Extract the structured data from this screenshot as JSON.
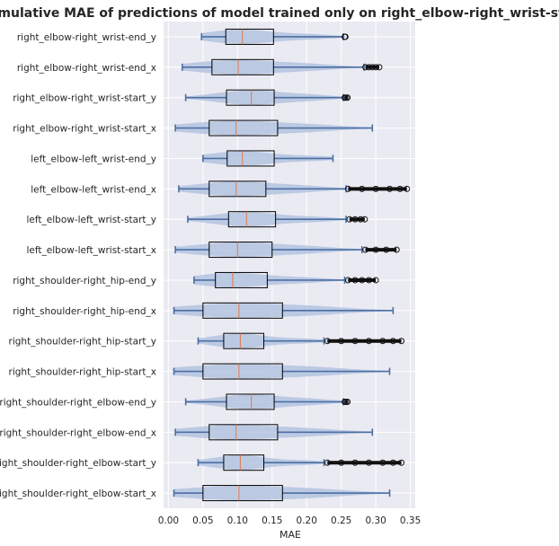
{
  "chart_data": {
    "type": "box-violin",
    "title": "Cumulative MAE of predictions of model trained only on right_elbow-right_wrist-start_x",
    "xlabel": "MAE",
    "ylabel": "",
    "xlim": [
      -0.007,
      0.357
    ],
    "xticks": [
      0.0,
      0.05,
      0.1,
      0.15,
      0.2,
      0.25,
      0.3,
      0.35
    ],
    "xtick_labels": [
      "0.00",
      "0.05",
      "0.10",
      "0.15",
      "0.20",
      "0.25",
      "0.30",
      "0.35"
    ],
    "grid": true,
    "colors": {
      "background": "#eaeaf2",
      "grid": "#ffffff",
      "violin": "#b3c3e0",
      "whisker": "#4c6fa3",
      "median": "#e07a4a",
      "box": "#000000",
      "outlier": "#111111"
    },
    "categories": [
      "right_elbow-right_wrist-end_y",
      "right_elbow-right_wrist-end_x",
      "right_elbow-right_wrist-start_y",
      "right_elbow-right_wrist-start_x",
      "left_elbow-left_wrist-end_y",
      "left_elbow-left_wrist-end_x",
      "left_elbow-left_wrist-start_y",
      "left_elbow-left_wrist-start_x",
      "right_shoulder-right_hip-end_y",
      "right_shoulder-right_hip-end_x",
      "right_shoulder-right_hip-start_y",
      "right_shoulder-right_hip-start_x",
      "right_shoulder-right_elbow-end_y",
      "right_shoulder-right_elbow-end_x",
      "right_shoulder-right_elbow-start_y",
      "right_shoulder-right_elbow-start_x"
    ],
    "boxes": [
      {
        "whislo": 0.048,
        "q1": 0.083,
        "med": 0.107,
        "q3": 0.152,
        "whishi": 0.253,
        "outliers": [
          0.255,
          0.256
        ]
      },
      {
        "whislo": 0.02,
        "q1": 0.063,
        "med": 0.101,
        "q3": 0.152,
        "whishi": 0.283,
        "outliers": [
          0.285,
          0.29,
          0.295,
          0.3,
          0.305
        ]
      },
      {
        "whislo": 0.025,
        "q1": 0.084,
        "med": 0.12,
        "q3": 0.153,
        "whishi": 0.253,
        "outliers": [
          0.255,
          0.257,
          0.259
        ]
      },
      {
        "whislo": 0.01,
        "q1": 0.059,
        "med": 0.098,
        "q3": 0.158,
        "whishi": 0.295,
        "outliers": []
      },
      {
        "whislo": 0.05,
        "q1": 0.085,
        "med": 0.107,
        "q3": 0.153,
        "whishi": 0.238,
        "outliers": []
      },
      {
        "whislo": 0.015,
        "q1": 0.059,
        "med": 0.098,
        "q3": 0.141,
        "whishi": 0.257,
        "outliers": [
          0.26,
          0.28,
          0.3,
          0.32,
          0.335,
          0.345
        ]
      },
      {
        "whislo": 0.028,
        "q1": 0.087,
        "med": 0.113,
        "q3": 0.155,
        "whishi": 0.257,
        "outliers": [
          0.262,
          0.27,
          0.278,
          0.284
        ]
      },
      {
        "whislo": 0.01,
        "q1": 0.059,
        "med": 0.1,
        "q3": 0.15,
        "whishi": 0.28,
        "outliers": [
          0.285,
          0.3,
          0.315,
          0.33
        ]
      },
      {
        "whislo": 0.037,
        "q1": 0.068,
        "med": 0.093,
        "q3": 0.143,
        "whishi": 0.255,
        "outliers": [
          0.26,
          0.27,
          0.28,
          0.29,
          0.3
        ]
      },
      {
        "whislo": 0.008,
        "q1": 0.05,
        "med": 0.102,
        "q3": 0.165,
        "whishi": 0.325,
        "outliers": []
      },
      {
        "whislo": 0.043,
        "q1": 0.08,
        "med": 0.104,
        "q3": 0.138,
        "whishi": 0.225,
        "outliers": [
          0.23,
          0.25,
          0.27,
          0.29,
          0.31,
          0.325,
          0.337
        ]
      },
      {
        "whislo": 0.008,
        "q1": 0.05,
        "med": 0.102,
        "q3": 0.165,
        "whishi": 0.32,
        "outliers": []
      },
      {
        "whislo": 0.025,
        "q1": 0.084,
        "med": 0.12,
        "q3": 0.153,
        "whishi": 0.253,
        "outliers": [
          0.255,
          0.257,
          0.259
        ]
      },
      {
        "whislo": 0.01,
        "q1": 0.059,
        "med": 0.098,
        "q3": 0.158,
        "whishi": 0.295,
        "outliers": []
      },
      {
        "whislo": 0.043,
        "q1": 0.08,
        "med": 0.104,
        "q3": 0.138,
        "whishi": 0.225,
        "outliers": [
          0.23,
          0.25,
          0.27,
          0.29,
          0.31,
          0.325,
          0.337
        ]
      },
      {
        "whislo": 0.008,
        "q1": 0.05,
        "med": 0.102,
        "q3": 0.165,
        "whishi": 0.32,
        "outliers": []
      }
    ]
  }
}
